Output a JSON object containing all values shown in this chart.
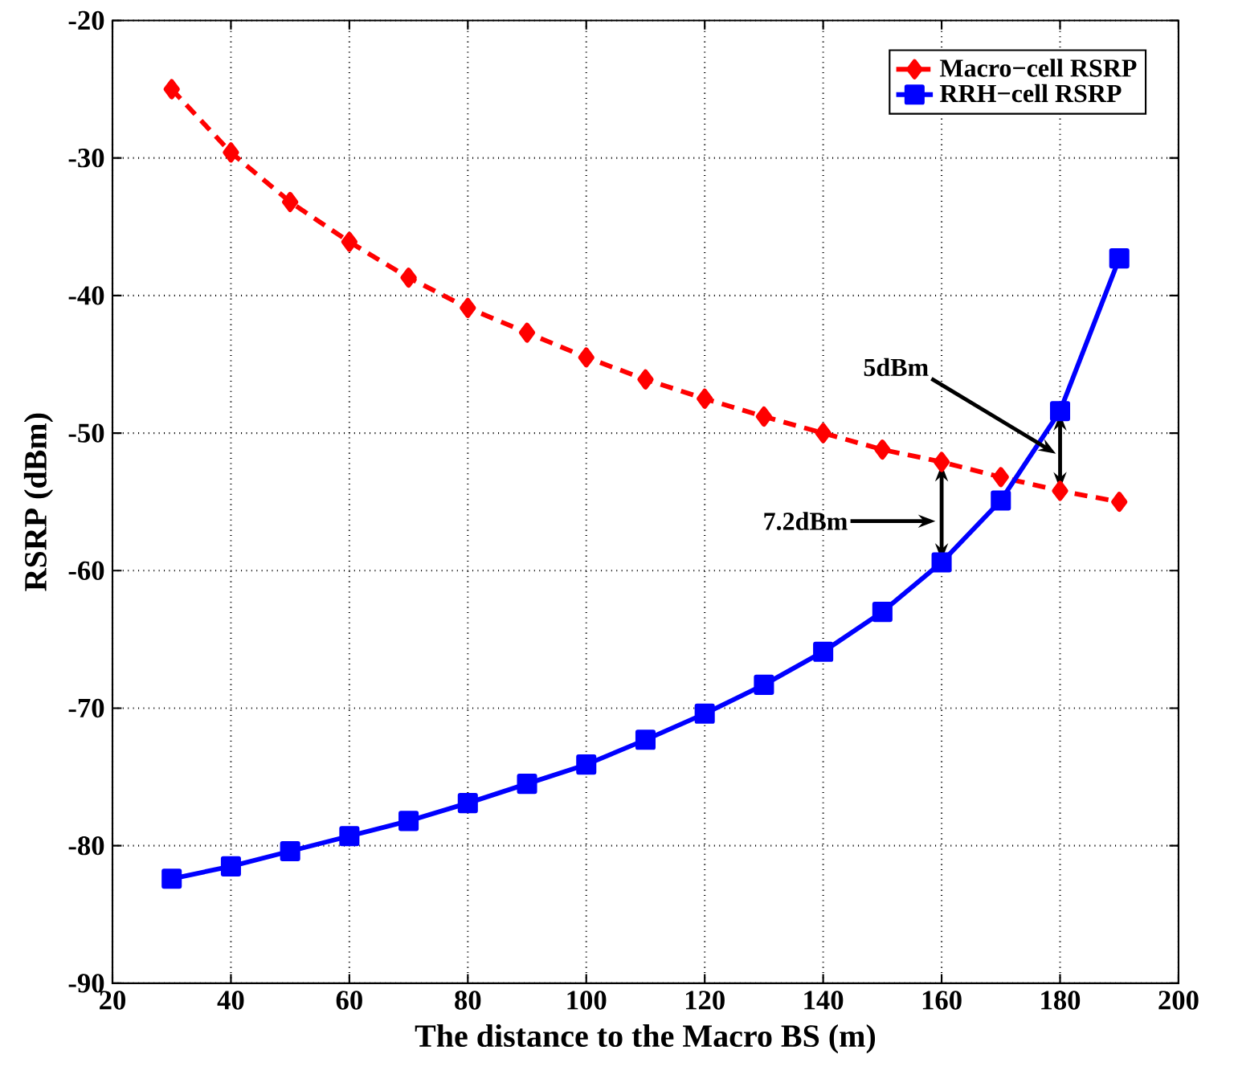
{
  "chart_data": {
    "type": "line",
    "xlabel": "The distance to the Macro BS (m)",
    "ylabel": "RSRP (dBm)",
    "x": [
      30,
      40,
      50,
      60,
      70,
      80,
      90,
      100,
      110,
      120,
      130,
      140,
      150,
      160,
      170,
      180,
      190
    ],
    "series": [
      {
        "name": "Macro−cell RSRP",
        "color": "#ff0000",
        "marker": "diamond",
        "line_style": "dashed",
        "values": [
          -25.0,
          -29.6,
          -33.2,
          -36.1,
          -38.7,
          -40.9,
          -42.7,
          -44.5,
          -46.1,
          -47.5,
          -48.8,
          -50.0,
          -51.2,
          -52.1,
          -53.2,
          -54.2,
          -55.0
        ]
      },
      {
        "name": "RRH−cell RSRP",
        "color": "#0000ff",
        "marker": "square",
        "line_style": "solid",
        "values": [
          -82.4,
          -81.5,
          -80.4,
          -79.3,
          -78.2,
          -76.9,
          -75.5,
          -74.1,
          -72.3,
          -70.4,
          -68.3,
          -65.9,
          -63.0,
          -59.4,
          -54.9,
          -48.4,
          -37.3
        ]
      }
    ],
    "xlim": [
      20,
      200
    ],
    "xticks": [
      20,
      40,
      60,
      80,
      100,
      120,
      140,
      160,
      180,
      200
    ],
    "ylim": [
      -90,
      -20
    ],
    "yticks": [
      -90,
      -80,
      -70,
      -60,
      -50,
      -40,
      -30,
      -20
    ],
    "grid": true,
    "legend": "top right",
    "annotations": [
      "5dBm",
      "7.2dBm"
    ]
  }
}
